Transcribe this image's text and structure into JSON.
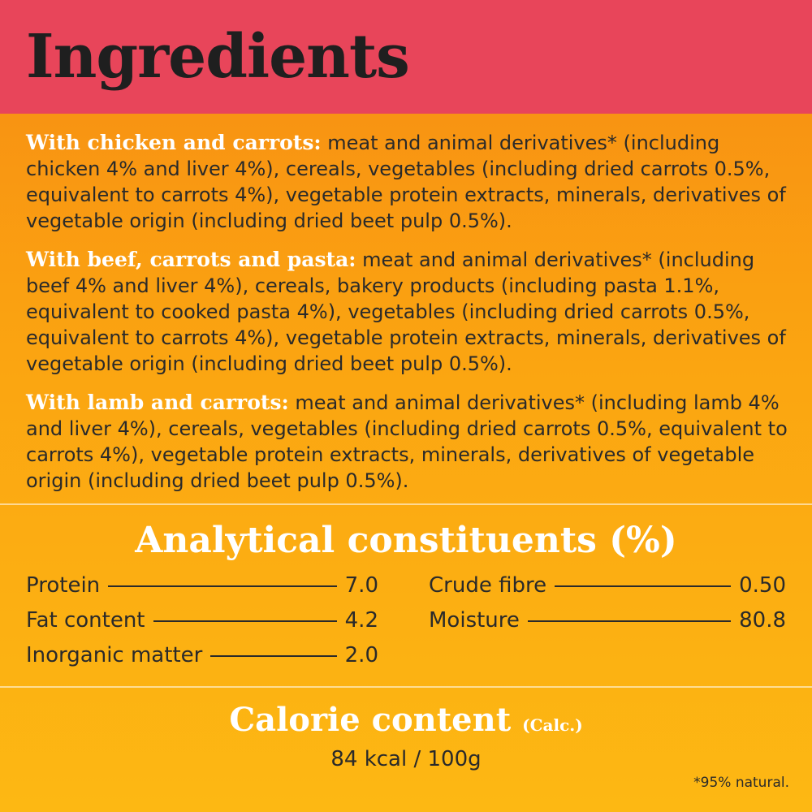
{
  "header": {
    "title": "Ingredients"
  },
  "ingredients": [
    {
      "lead": "With chicken and carrots:",
      "text": " meat and animal derivatives* (including chicken 4% and liver 4%), cereals, vegetables (including dried carrots 0.5%, equivalent to carrots 4%), vegetable protein extracts, minerals, derivatives of vegetable origin (including dried beet pulp 0.5%)."
    },
    {
      "lead": "With beef, carrots and pasta:",
      "text": " meat and animal derivatives* (including beef 4% and liver 4%), cereals, bakery products (including pasta 1.1%, equivalent to cooked pasta 4%), vegetables (including dried carrots 0.5%, equivalent to carrots 4%), vegetable protein extracts, minerals, derivatives of vegetable origin (including dried beet pulp 0.5%)."
    },
    {
      "lead": "With lamb and carrots:",
      "text": " meat and animal derivatives* (including lamb 4% and liver 4%), cereals, vegetables (including dried carrots 0.5%, equivalent to carrots 4%), vegetable protein extracts, minerals, derivatives of vegetable origin (including dried beet pulp 0.5%)."
    }
  ],
  "analytical": {
    "title": "Analytical constituents (%)",
    "left": [
      {
        "label": "Protein",
        "value": "7.0"
      },
      {
        "label": "Fat content",
        "value": "4.2"
      },
      {
        "label": "Inorganic matter",
        "value": "2.0"
      }
    ],
    "right": [
      {
        "label": "Crude fibre",
        "value": "0.50"
      },
      {
        "label": "Moisture",
        "value": "80.8"
      }
    ]
  },
  "calorie": {
    "title": "Calorie content",
    "calc": "(Calc.)",
    "value": "84 kcal / 100g"
  },
  "footnote": "*95% natural.",
  "colors": {
    "header": "#e8455a",
    "background_top": "#f78c12",
    "background_bottom": "#fdb813",
    "heading_text": "#ffffff"
  }
}
